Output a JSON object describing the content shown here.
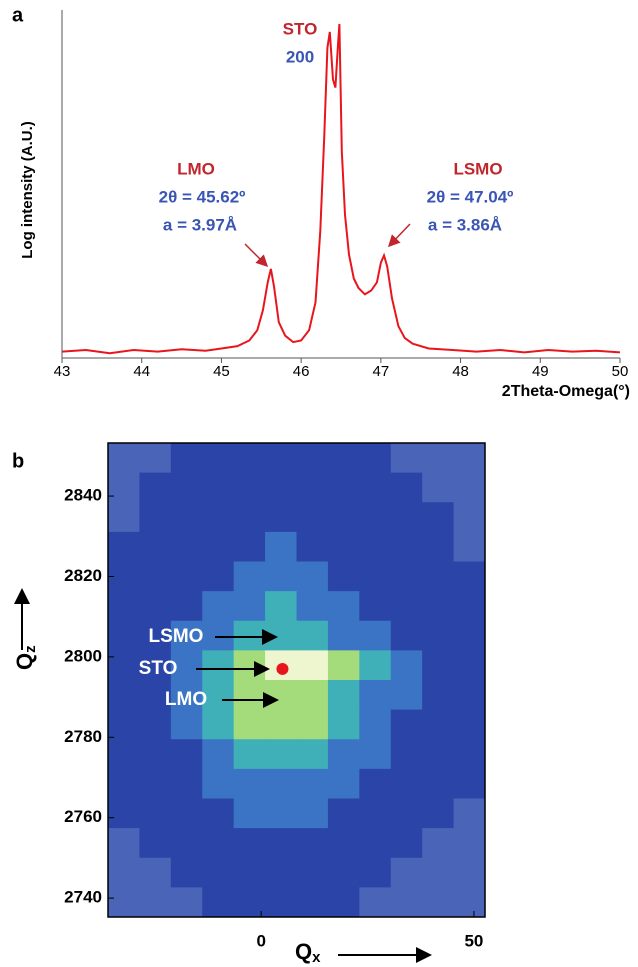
{
  "chart_data": [
    {
      "type": "line",
      "panel": "a",
      "xlabel": "2Theta-Omega(°)",
      "ylabel": "Log intensity (A.U.)",
      "x": [
        43.0,
        43.3,
        43.6,
        43.9,
        44.2,
        44.5,
        44.8,
        45.0,
        45.2,
        45.35,
        45.45,
        45.52,
        45.58,
        45.62,
        45.66,
        45.72,
        45.8,
        45.9,
        46.0,
        46.1,
        46.18,
        46.24,
        46.29,
        46.33,
        46.36,
        46.4,
        46.43,
        46.46,
        46.48,
        46.51,
        46.55,
        46.6,
        46.66,
        46.72,
        46.8,
        46.88,
        46.95,
        47.0,
        47.04,
        47.08,
        47.14,
        47.22,
        47.3,
        47.4,
        47.6,
        47.9,
        48.2,
        48.5,
        48.8,
        49.1,
        49.4,
        49.7,
        50.0
      ],
      "series": [
        {
          "color": "#e8161c",
          "values": [
            0.08,
            0.1,
            0.06,
            0.1,
            0.08,
            0.11,
            0.09,
            0.12,
            0.15,
            0.22,
            0.35,
            0.6,
            0.95,
            1.12,
            0.9,
            0.45,
            0.28,
            0.2,
            0.22,
            0.35,
            0.7,
            1.6,
            2.8,
            3.9,
            4.1,
            3.5,
            3.4,
            3.9,
            4.2,
            2.6,
            1.8,
            1.3,
            1.0,
            0.88,
            0.8,
            0.85,
            0.95,
            1.2,
            1.29,
            1.15,
            0.75,
            0.4,
            0.25,
            0.18,
            0.12,
            0.1,
            0.08,
            0.1,
            0.07,
            0.1,
            0.08,
            0.09,
            0.07
          ]
        }
      ],
      "xlim": [
        43,
        50
      ],
      "xticks": [
        43,
        44,
        45,
        46,
        47,
        48,
        49,
        50
      ],
      "ylim": [
        0,
        4.25
      ],
      "annotations": {
        "sto": "STO",
        "sto_hkl": "200",
        "lmo": "LMO",
        "lmo_angle": "2θ = 45.62º",
        "lmo_a": "a = 3.97Å",
        "lsmo": "LSMO",
        "lsmo_angle": "2θ = 47.04º",
        "lsmo_a": "a = 3.86Å"
      }
    },
    {
      "type": "heatmap",
      "panel": "b",
      "xlabel_symbol": "Q",
      "xlabel_subscript": "x",
      "ylabel_symbol": "Q",
      "ylabel_subscript": "z",
      "xlim": [
        -36,
        52.6
      ],
      "xticks": [
        0,
        50
      ],
      "ylim": [
        2735.3,
        2853.2
      ],
      "yticks": [
        2740,
        2760,
        2780,
        2800,
        2820,
        2840
      ],
      "colors": [
        "#4a64b8",
        "#2a44a8",
        "#3b74c4",
        "#3fb0b8",
        "#a4dc7c",
        "#eef6d0"
      ],
      "z": [
        [
          0,
          0,
          1,
          1,
          1,
          1,
          1,
          1,
          1,
          0,
          0,
          0
        ],
        [
          0,
          1,
          1,
          1,
          1,
          1,
          1,
          1,
          1,
          1,
          0,
          0
        ],
        [
          0,
          1,
          1,
          1,
          1,
          1,
          1,
          1,
          1,
          1,
          1,
          0
        ],
        [
          1,
          1,
          1,
          1,
          1,
          2,
          1,
          1,
          1,
          1,
          1,
          0
        ],
        [
          1,
          1,
          1,
          1,
          2,
          2,
          2,
          1,
          1,
          1,
          1,
          1
        ],
        [
          1,
          1,
          1,
          2,
          2,
          3,
          2,
          2,
          1,
          1,
          1,
          1
        ],
        [
          1,
          1,
          2,
          2,
          3,
          3,
          3,
          2,
          2,
          1,
          1,
          1
        ],
        [
          1,
          1,
          2,
          3,
          4,
          5,
          5,
          4,
          3,
          2,
          1,
          1
        ],
        [
          1,
          1,
          2,
          3,
          4,
          4,
          4,
          3,
          2,
          2,
          1,
          1
        ],
        [
          1,
          1,
          2,
          3,
          4,
          4,
          4,
          3,
          2,
          1,
          1,
          1
        ],
        [
          1,
          1,
          1,
          2,
          3,
          3,
          3,
          2,
          2,
          1,
          1,
          1
        ],
        [
          1,
          1,
          1,
          2,
          2,
          2,
          2,
          2,
          1,
          1,
          1,
          1
        ],
        [
          1,
          1,
          1,
          1,
          2,
          2,
          2,
          1,
          1,
          1,
          1,
          0
        ],
        [
          0,
          1,
          1,
          1,
          1,
          1,
          1,
          1,
          1,
          1,
          0,
          0
        ],
        [
          0,
          0,
          1,
          1,
          1,
          1,
          1,
          1,
          1,
          0,
          0,
          0
        ],
        [
          0,
          0,
          0,
          1,
          1,
          1,
          1,
          1,
          0,
          0,
          0,
          0
        ]
      ],
      "peak": {
        "qx": 5,
        "qz": 2797,
        "color": "#e8161c"
      },
      "annotations": {
        "lsmo": "LSMO",
        "sto": "STO",
        "lmo": "LMO"
      }
    }
  ]
}
